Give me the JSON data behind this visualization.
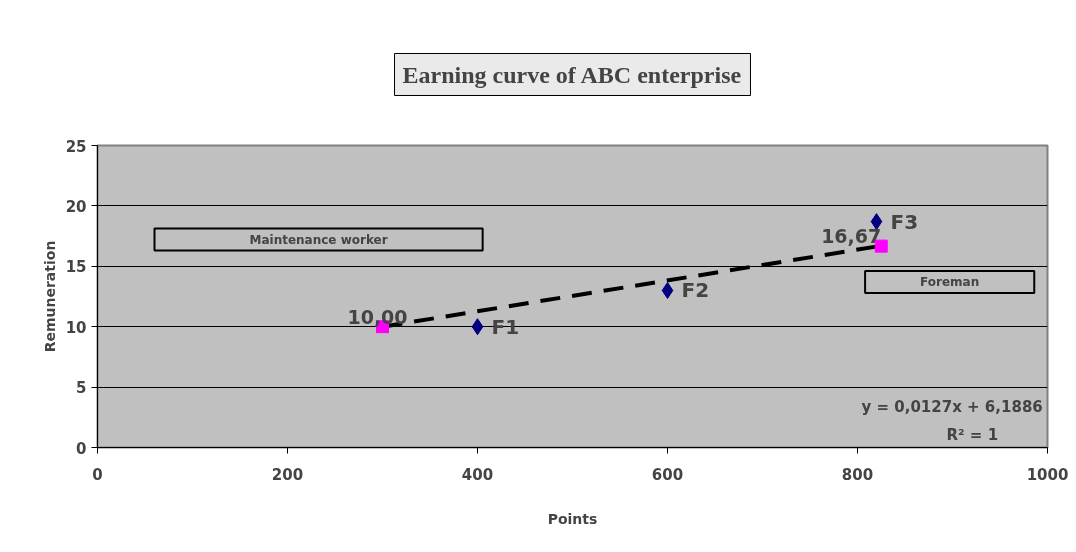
{
  "chart_data": {
    "type": "scatter",
    "title": "Earning curve of ABC enterprise",
    "xlabel": "Points",
    "ylabel": "Remuneration",
    "xlim": [
      0,
      1000
    ],
    "xticks": [
      0,
      200,
      400,
      600,
      800,
      1000
    ],
    "ylim": [
      0,
      25
    ],
    "yticks": [
      0,
      5,
      10,
      15,
      20,
      25
    ],
    "grid": "y",
    "series": [
      {
        "marker": "diamond",
        "color": "#000080",
        "x": [
          400,
          600,
          820
        ],
        "values": [
          10,
          13,
          18.7
        ]
      },
      {
        "type": "line",
        "line_style": "dashed",
        "color": "#000000",
        "x": [
          300,
          825
        ],
        "values": [
          10,
          16.7
        ]
      },
      {
        "marker": "square",
        "color": "#ff00ff",
        "x": [
          300,
          825
        ],
        "values": [
          10,
          16.67
        ],
        "value_labels": [
          "10,00",
          "16,67"
        ]
      }
    ],
    "annotations": [
      {
        "text": "F1",
        "x": 400,
        "y": 10
      },
      {
        "text": "F2",
        "x": 600,
        "y": 13
      },
      {
        "text": "F3",
        "x": 820,
        "y": 18.7
      },
      "Maintenance worker",
      "Foreman",
      "y = 0,0127x + 6,1886",
      "R² = 1"
    ]
  }
}
